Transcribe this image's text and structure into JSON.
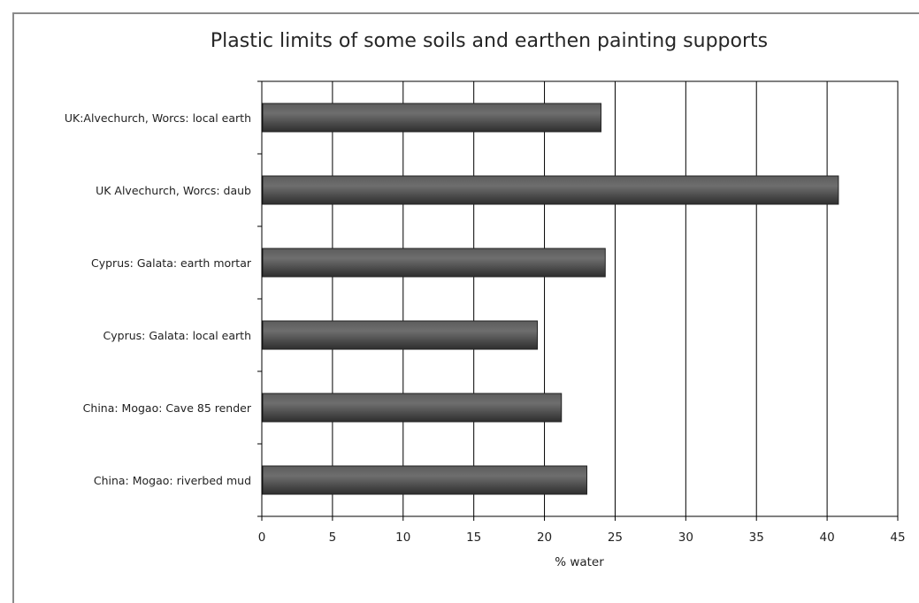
{
  "chart_data": {
    "type": "bar",
    "orientation": "horizontal",
    "title": "Plastic limits of some soils and earthen painting supports",
    "xlabel": "% water",
    "ylabel": "",
    "categories": [
      "UK:Alvechurch, Worcs: local earth",
      "UK Alvechurch, Worcs: daub",
      "Cyprus: Galata: earth mortar",
      "Cyprus: Galata: local earth",
      "China: Mogao: Cave 85 render",
      "China: Mogao: riverbed mud"
    ],
    "values": [
      24,
      40.8,
      24.3,
      19.5,
      21.2,
      23
    ],
    "xlim": [
      0,
      45
    ],
    "xticks": [
      "0",
      "5",
      "10",
      "15",
      "20",
      "25",
      "30",
      "35",
      "40",
      "45"
    ],
    "grid": "vertical",
    "legend": "none",
    "colors": {
      "bar": "#3a3a3a",
      "bar_highlight": "#6b6b6b",
      "grid": "#000000",
      "frame": "#8a8a8a"
    }
  }
}
